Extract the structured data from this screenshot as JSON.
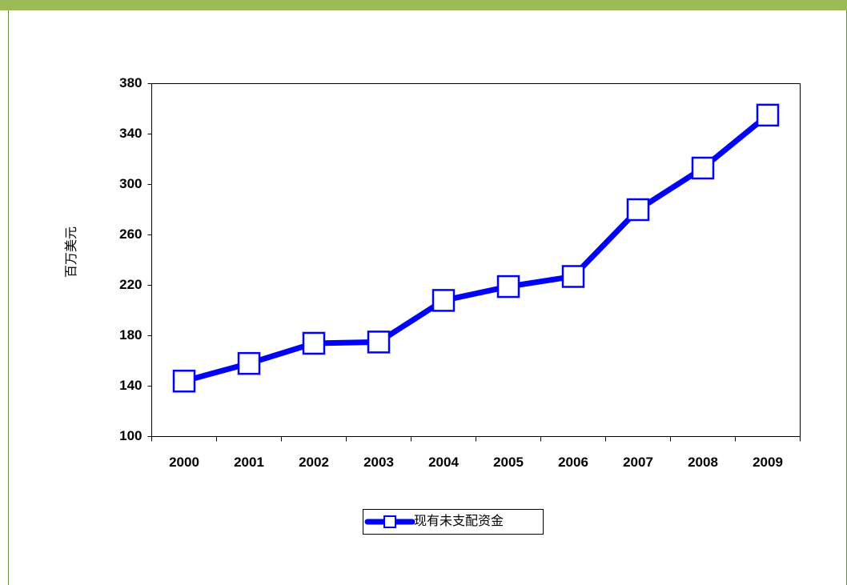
{
  "chart_data": {
    "type": "line",
    "ylabel": "百万美元",
    "categories": [
      "2000",
      "2001",
      "2002",
      "2003",
      "2004",
      "2005",
      "2006",
      "2007",
      "2008",
      "2009"
    ],
    "series": [
      {
        "name": "现有未支配资金",
        "color": "#0000ff",
        "values": [
          144,
          158,
          174,
          175,
          208,
          219,
          227,
          280,
          313,
          355
        ]
      }
    ],
    "ylim": [
      100,
      380
    ],
    "yticks": [
      100,
      140,
      180,
      220,
      260,
      300,
      340,
      380
    ],
    "grid": false,
    "legend": "bottom"
  }
}
